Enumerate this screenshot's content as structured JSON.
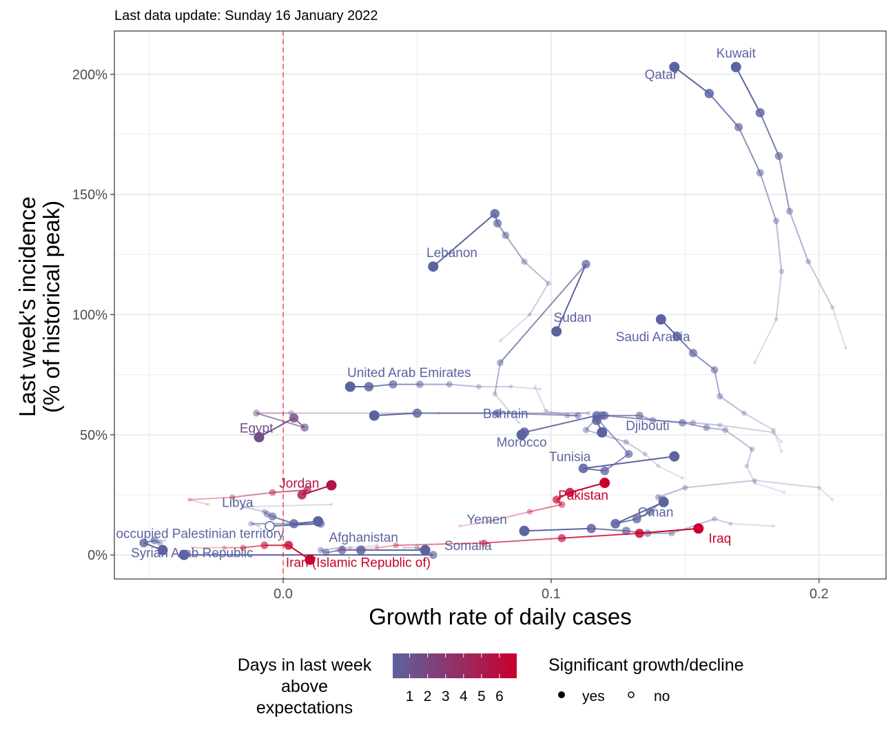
{
  "subtitle": "Last data update: Sunday 16 January 2022",
  "colors": {
    "low": "#5b63a0",
    "high": "#c8002e",
    "vline": "#f8766d",
    "grid": "#ebebeb",
    "panel_border": "#333333"
  },
  "chart_data": {
    "type": "scatter",
    "xlabel": "Growth rate of daily cases",
    "ylabel_line1": "Last week's incidence",
    "ylabel_line2": "(% of historical peak)",
    "xlim": [
      -0.063,
      0.225
    ],
    "ylim": [
      -10,
      218
    ],
    "x_ticks": [
      0.0,
      0.1,
      0.2
    ],
    "x_tick_labels": [
      "0.0",
      "0.1",
      "0.2"
    ],
    "y_ticks": [
      0,
      50,
      100,
      150,
      200
    ],
    "y_tick_labels": [
      "0%",
      "50%",
      "100%",
      "150%",
      "200%"
    ],
    "grid": true,
    "reference_line_x": 0,
    "series": [
      {
        "name": "Kuwait",
        "d": 0,
        "sig": true,
        "lx": 0.169,
        "ly": 207,
        "pts": [
          [
            0.21,
            86
          ],
          [
            0.205,
            103
          ],
          [
            0.196,
            122
          ],
          [
            0.189,
            143
          ],
          [
            0.185,
            166
          ],
          [
            0.178,
            184
          ],
          [
            0.169,
            203
          ]
        ]
      },
      {
        "name": "Qatar",
        "d": 0,
        "sig": true,
        "lx": 0.141,
        "ly": 198,
        "pts": [
          [
            0.176,
            80
          ],
          [
            0.184,
            98
          ],
          [
            0.186,
            118
          ],
          [
            0.184,
            139
          ],
          [
            0.178,
            159
          ],
          [
            0.17,
            178
          ],
          [
            0.159,
            192
          ],
          [
            0.146,
            203
          ]
        ]
      },
      {
        "name": "Lebanon",
        "d": 0,
        "sig": true,
        "lx": 0.063,
        "ly": 124,
        "pts": [
          [
            0.081,
            89
          ],
          [
            0.092,
            100
          ],
          [
            0.099,
            113
          ],
          [
            0.09,
            122
          ],
          [
            0.083,
            133
          ],
          [
            0.08,
            138
          ],
          [
            0.079,
            142
          ],
          [
            0.056,
            120
          ]
        ]
      },
      {
        "name": "Sudan",
        "d": 0,
        "sig": true,
        "lx": 0.108,
        "ly": 97,
        "pts": [
          [
            0.088,
            55
          ],
          [
            0.079,
            67
          ],
          [
            0.081,
            80
          ],
          [
            0.113,
            121
          ],
          [
            0.102,
            93
          ]
        ]
      },
      {
        "name": "Saudi Arabia",
        "d": 0,
        "sig": true,
        "lx": 0.138,
        "ly": 89,
        "pts": [
          [
            0.186,
            43
          ],
          [
            0.183,
            52
          ],
          [
            0.172,
            59
          ],
          [
            0.163,
            66
          ],
          [
            0.161,
            77
          ],
          [
            0.153,
            84
          ],
          [
            0.147,
            91
          ],
          [
            0.141,
            98
          ]
        ]
      },
      {
        "name": "United Arab Emirates",
        "d": 0,
        "sig": true,
        "lx": 0.047,
        "ly": 74,
        "pts": [
          [
            0.096,
            69
          ],
          [
            0.085,
            70
          ],
          [
            0.073,
            70
          ],
          [
            0.062,
            71
          ],
          [
            0.051,
            71
          ],
          [
            0.041,
            71
          ],
          [
            0.032,
            70
          ],
          [
            0.025,
            70
          ]
        ]
      },
      {
        "name": "Egypt",
        "d": 2,
        "sig": true,
        "lx": -0.01,
        "ly": 51,
        "pts": [
          [
            0.058,
            59
          ],
          [
            0.114,
            59
          ],
          [
            0.003,
            59
          ],
          [
            -0.01,
            59
          ],
          [
            0.008,
            53
          ],
          [
            0.004,
            57
          ],
          [
            -0.009,
            49
          ]
        ]
      },
      {
        "name": "Bahrain",
        "d": 0,
        "sig": true,
        "lx": 0.083,
        "ly": 57,
        "pts": [
          [
            0.094,
            70
          ],
          [
            0.098,
            60
          ],
          [
            0.106,
            58
          ],
          [
            0.11,
            58
          ],
          [
            0.08,
            59
          ],
          [
            0.05,
            59
          ],
          [
            0.034,
            58
          ]
        ]
      },
      {
        "name": "Djibouti",
        "d": 0,
        "sig": true,
        "lx": 0.136,
        "ly": 52,
        "pts": [
          [
            0.186,
            47
          ],
          [
            0.183,
            51
          ],
          [
            0.163,
            54
          ],
          [
            0.153,
            55
          ],
          [
            0.138,
            56
          ],
          [
            0.133,
            58
          ],
          [
            0.119,
            58
          ],
          [
            0.117,
            56
          ],
          [
            0.119,
            51
          ]
        ]
      },
      {
        "name": "Morocco",
        "d": 0,
        "sig": true,
        "lx": 0.089,
        "ly": 45,
        "pts": [
          [
            0.187,
            26
          ],
          [
            0.176,
            30
          ],
          [
            0.173,
            37
          ],
          [
            0.175,
            44
          ],
          [
            0.165,
            52
          ],
          [
            0.158,
            53
          ],
          [
            0.149,
            55
          ],
          [
            0.12,
            58
          ],
          [
            0.117,
            58
          ],
          [
            0.09,
            51
          ],
          [
            0.089,
            50
          ]
        ]
      },
      {
        "name": "Tunisia",
        "d": 0,
        "sig": true,
        "lx": 0.107,
        "ly": 39,
        "pts": [
          [
            0.149,
            32
          ],
          [
            0.14,
            37
          ],
          [
            0.135,
            42
          ],
          [
            0.128,
            47
          ],
          [
            0.113,
            52
          ],
          [
            0.117,
            57
          ],
          [
            0.129,
            42
          ],
          [
            0.12,
            35
          ],
          [
            0.112,
            36
          ],
          [
            0.146,
            41
          ]
        ]
      },
      {
        "name": "Pakistan",
        "d": 6,
        "sig": true,
        "lx": 0.112,
        "ly": 23,
        "pts": [
          [
            0.066,
            12
          ],
          [
            0.077,
            14
          ],
          [
            0.092,
            18
          ],
          [
            0.104,
            21
          ],
          [
            0.102,
            23
          ],
          [
            0.107,
            26
          ],
          [
            0.12,
            30
          ]
        ]
      },
      {
        "name": "Oman",
        "d": 0,
        "sig": true,
        "lx": 0.139,
        "ly": 16,
        "pts": [
          [
            0.205,
            23
          ],
          [
            0.2,
            28
          ],
          [
            0.176,
            31
          ],
          [
            0.15,
            28
          ],
          [
            0.14,
            24
          ],
          [
            0.142,
            23
          ],
          [
            0.137,
            18
          ],
          [
            0.132,
            15
          ],
          [
            0.124,
            13
          ],
          [
            0.142,
            22
          ]
        ]
      },
      {
        "name": "Yemen",
        "d": 0,
        "sig": true,
        "lx": 0.076,
        "ly": 13,
        "pts": [
          [
            0.183,
            12
          ],
          [
            0.167,
            13
          ],
          [
            0.161,
            15
          ],
          [
            0.145,
            9
          ],
          [
            0.136,
            9
          ],
          [
            0.128,
            10
          ],
          [
            0.115,
            11
          ],
          [
            0.09,
            10
          ]
        ]
      },
      {
        "name": "Jordan",
        "d": 5,
        "sig": true,
        "lx": 0.006,
        "ly": 28,
        "pts": [
          [
            -0.028,
            21
          ],
          [
            -0.035,
            23
          ],
          [
            -0.019,
            24
          ],
          [
            -0.004,
            26
          ],
          [
            0.009,
            27
          ],
          [
            0.007,
            25
          ],
          [
            0.018,
            29
          ]
        ]
      },
      {
        "name": "Libya",
        "d": 0,
        "sig": true,
        "lx": -0.017,
        "ly": 20,
        "pts": [
          [
            0.018,
            21
          ],
          [
            -0.015,
            20
          ],
          [
            -0.007,
            18
          ],
          [
            -0.006,
            17
          ],
          [
            -0.004,
            16
          ],
          [
            0.004,
            13
          ],
          [
            0.013,
            14
          ]
        ]
      },
      {
        "name": "occupied Palestinian territory",
        "d": 0,
        "sig": false,
        "lx": -0.031,
        "ly": 7,
        "pts": [
          [
            -0.009,
            12
          ],
          [
            -0.012,
            13
          ],
          [
            0.014,
            13
          ],
          [
            -0.005,
            12
          ]
        ]
      },
      {
        "name": "Syrian Arab Republic",
        "d": 0,
        "sig": true,
        "lx": -0.034,
        "ly": -1,
        "pts": [
          [
            -0.044,
            6
          ],
          [
            -0.049,
            6
          ],
          [
            -0.046,
            5
          ],
          [
            -0.048,
            6
          ],
          [
            -0.052,
            5
          ],
          [
            -0.045,
            2
          ]
        ]
      },
      {
        "name": "Afghanistan",
        "d": 0,
        "sig": true,
        "lx": 0.03,
        "ly": 5.5,
        "pts": [
          [
            0.035,
            4
          ],
          [
            0.025,
            3
          ],
          [
            0.022,
            3
          ],
          [
            0.014,
            2
          ],
          [
            0.016,
            1
          ],
          [
            0.022,
            2
          ],
          [
            0.029,
            2
          ],
          [
            0.053,
            2
          ]
        ]
      },
      {
        "name": "Somalia",
        "d": 0,
        "sig": true,
        "lx": 0.069,
        "ly": 2,
        "pts": [
          [
            0.045,
            3
          ],
          [
            0.05,
            3
          ],
          [
            0.056,
            0
          ],
          [
            -0.037,
            0
          ]
        ]
      },
      {
        "name": "Iran (Islamic Republic of)",
        "d": 6,
        "sig": true,
        "lx": 0.028,
        "ly": -5,
        "pts": [
          [
            -0.034,
            3
          ],
          [
            -0.022,
            3
          ],
          [
            -0.015,
            3
          ],
          [
            -0.007,
            4
          ],
          [
            0.002,
            4
          ],
          [
            0.01,
            -2
          ]
        ]
      },
      {
        "name": "Iraq",
        "d": 6,
        "sig": true,
        "lx": 0.163,
        "ly": 5,
        "pts": [
          [
            0.02,
            2
          ],
          [
            0.035,
            3
          ],
          [
            0.042,
            4
          ],
          [
            0.075,
            5
          ],
          [
            0.104,
            7
          ],
          [
            0.133,
            9
          ],
          [
            0.155,
            11
          ]
        ]
      }
    ]
  },
  "legend": {
    "days_title_line1": "Days in last week",
    "days_title_line2": "above",
    "days_title_line3": "expectations",
    "days_labels": [
      "1",
      "2",
      "3",
      "4",
      "5",
      "6"
    ],
    "sig_title": "Significant growth/decline",
    "sig_yes": "yes",
    "sig_no": "no"
  }
}
